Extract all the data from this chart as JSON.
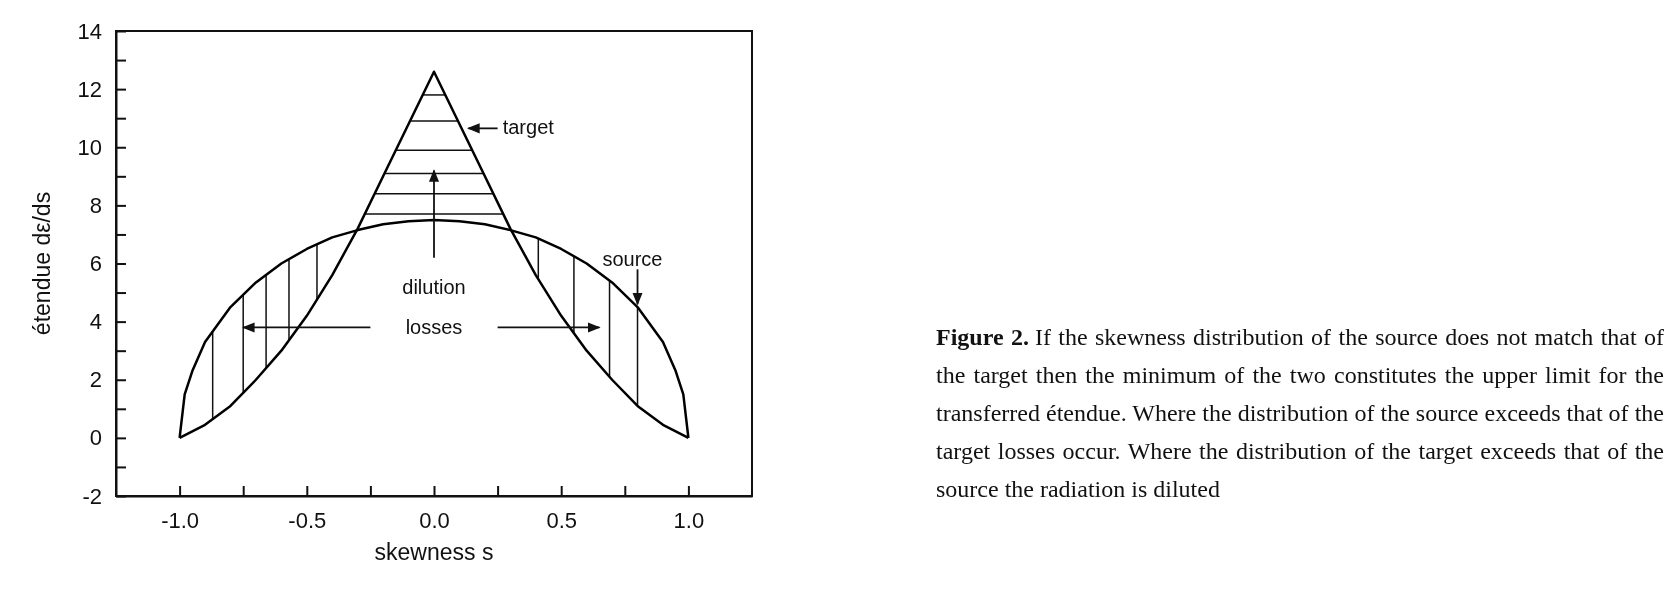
{
  "chart_data": {
    "type": "line",
    "title": "Figure 2.",
    "subtitle": "If the skewness distribution of the source does not match that of the target then the minimum of the two constitutes the upper limit for the transferred étendue. Where the distribution of the source exceeds that of the target losses occur. Where the distribution of the target exceeds that of the source the radiation is diluted",
    "xlabel": "skewness s",
    "ylabel": "étendue dε/ds",
    "annotations": [
      "dilution",
      "losses"
    ],
    "series": [
      {
        "name": "target",
        "color": "#000000",
        "x": [
          -1,
          -0.9,
          -0.8,
          -0.7,
          -0.6,
          -0.5,
          -0.4,
          -0.3,
          -0.2,
          -0.1,
          0,
          0.1,
          0.2,
          0.3,
          0.4,
          0.5,
          0.6,
          0.7,
          0.8,
          0.9,
          1
        ],
        "values": [
          0,
          0.45,
          1.1,
          2.0,
          3.0,
          4.2,
          5.6,
          7.2,
          9.0,
          10.8,
          12.6,
          10.8,
          9.0,
          7.2,
          5.6,
          4.2,
          3.0,
          2.0,
          1.1,
          0.45,
          0
        ]
      },
      {
        "name": "source",
        "color": "#000000",
        "x": [
          -1,
          -0.98,
          -0.95,
          -0.9,
          -0.8,
          -0.7,
          -0.6,
          -0.5,
          -0.4,
          -0.3,
          -0.2,
          -0.1,
          0,
          0.1,
          0.2,
          0.3,
          0.4,
          0.5,
          0.6,
          0.7,
          0.8,
          0.9,
          0.95,
          0.98,
          1
        ],
        "values": [
          0,
          1.5,
          2.3,
          3.3,
          4.5,
          5.35,
          6.0,
          6.5,
          6.9,
          7.15,
          7.35,
          7.45,
          7.5,
          7.45,
          7.35,
          7.15,
          6.9,
          6.5,
          6.0,
          5.35,
          4.5,
          3.3,
          2.3,
          1.5,
          0
        ]
      }
    ],
    "xlim": [
      -1.25,
      1.25
    ],
    "ylim": [
      -2,
      14
    ],
    "xticks": [
      {
        "value": -1,
        "label": "-1.0"
      },
      {
        "value": -0.75,
        "label": null
      },
      {
        "value": -0.5,
        "label": "-0.5"
      },
      {
        "value": -0.25,
        "label": null
      },
      {
        "value": 0,
        "label": "0.0"
      },
      {
        "value": 0.25,
        "label": null
      },
      {
        "value": 0.5,
        "label": "0.5"
      },
      {
        "value": 0.75,
        "label": null
      },
      {
        "value": 1,
        "label": "1.0"
      }
    ],
    "yticks": [
      -2,
      {
        "value": -1,
        "label": null
      },
      0,
      {
        "value": 1,
        "label": null
      },
      2,
      {
        "value": 3,
        "label": null
      },
      4,
      {
        "value": 5,
        "label": null
      },
      6,
      {
        "value": 7,
        "label": null
      },
      8,
      {
        "value": 9,
        "label": null
      },
      10,
      {
        "value": 11,
        "label": null
      },
      12,
      {
        "value": 13,
        "label": null
      },
      14
    ],
    "grid": false,
    "marker": "none",
    "line_style": "solid"
  }
}
